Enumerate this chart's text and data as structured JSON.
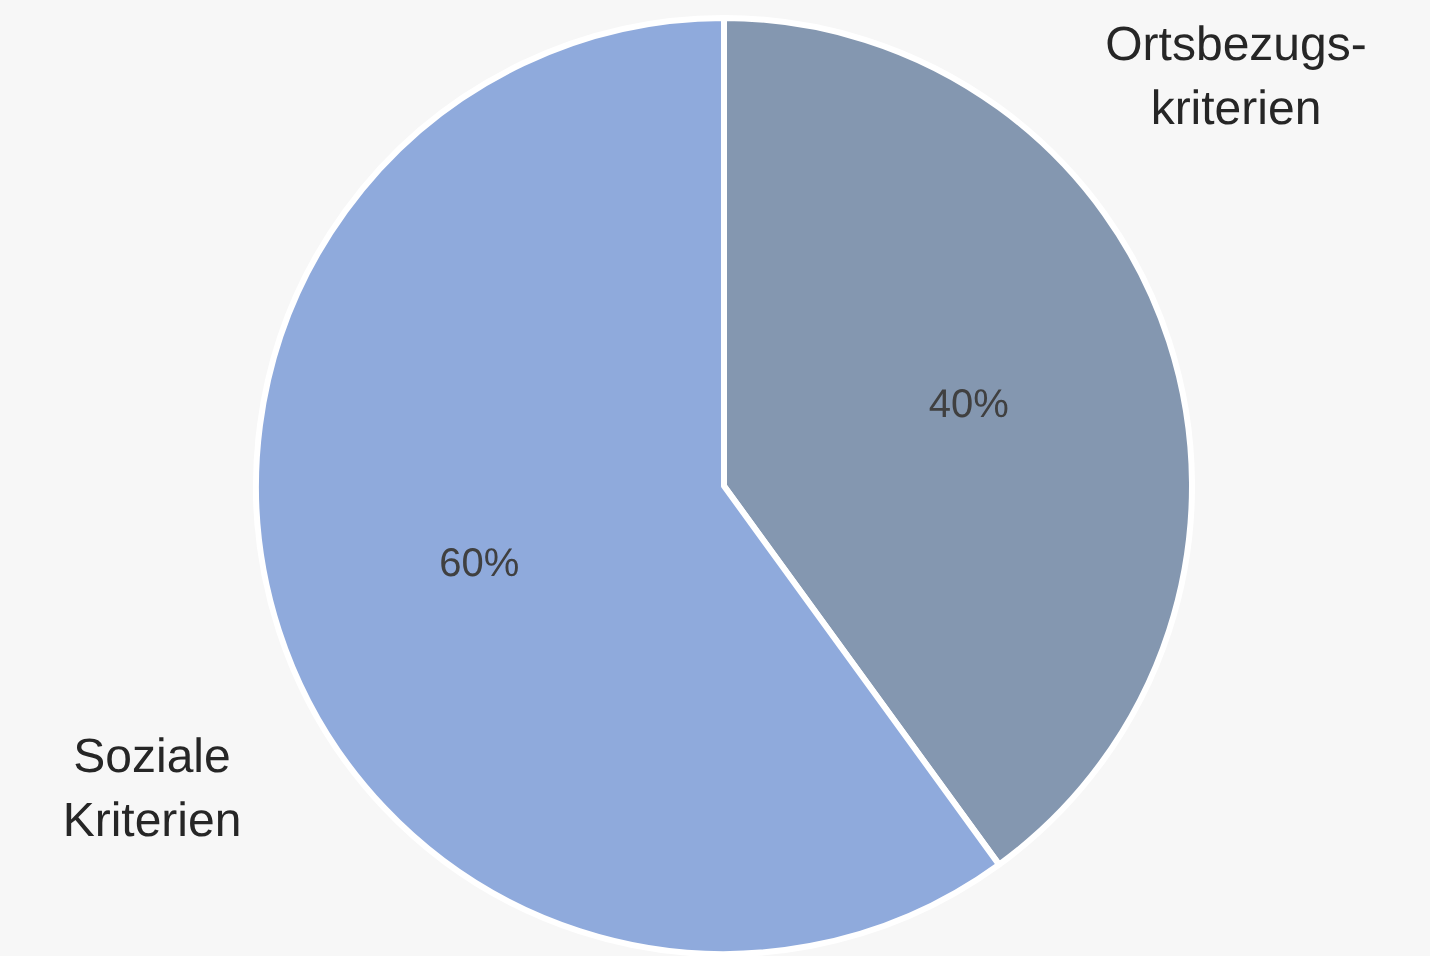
{
  "chart_data": {
    "type": "pie",
    "categories": [
      "Ortsbezugs-\nkriterien",
      "Soziale\nKriterien"
    ],
    "values": [
      40,
      60
    ],
    "colors": [
      "#8497b0",
      "#8faadc"
    ],
    "value_labels": [
      "40%",
      "60%"
    ],
    "legend": false
  }
}
